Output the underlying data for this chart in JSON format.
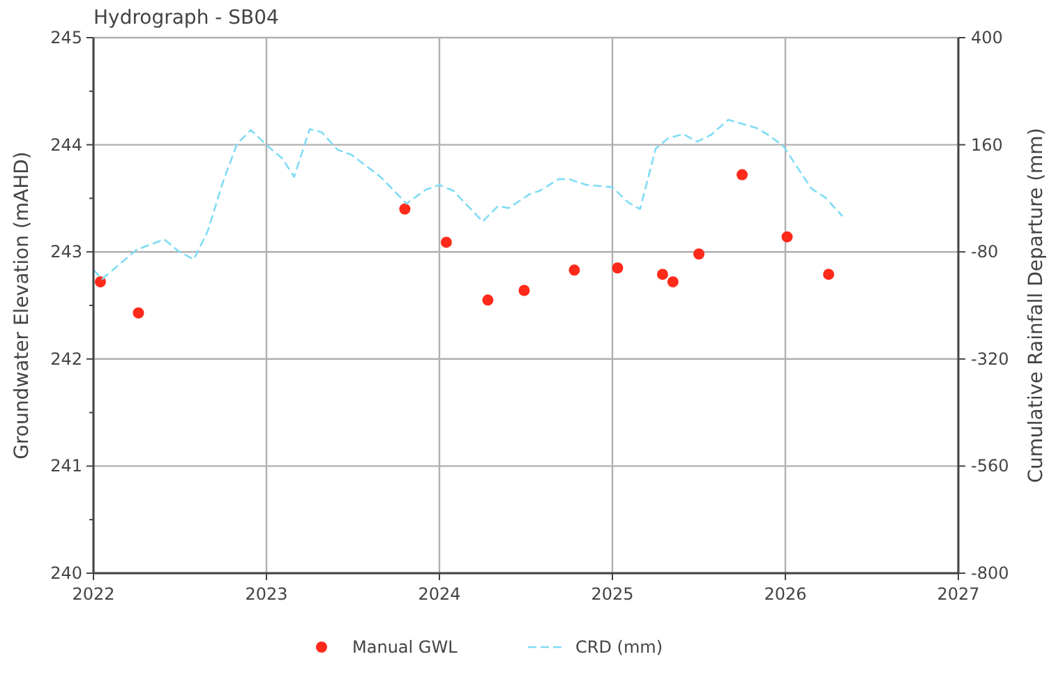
{
  "chart_data": {
    "type": "scatter",
    "title": "Hydrograph - SB04",
    "ylabel": "Groundwater Elevation (mAHD)",
    "y2label": "Cumulative Rainfall Departure (mm)",
    "xlim": [
      2022,
      2027
    ],
    "xticks": [
      2022,
      2023,
      2024,
      2025,
      2026,
      2027
    ],
    "ylim": [
      240,
      245
    ],
    "yticks": [
      240,
      {
        "value": 240.5,
        "label": null
      },
      241,
      {
        "value": 241.5,
        "label": null
      },
      242,
      {
        "value": 242.5,
        "label": null
      },
      243,
      {
        "value": 243.5,
        "label": null
      },
      244,
      {
        "value": 244.5,
        "label": null
      },
      245
    ],
    "y2lim": [
      -800,
      400
    ],
    "y2ticks": [
      -800,
      -560,
      -320,
      -80,
      160,
      400
    ],
    "grid": true,
    "legend": "bottom",
    "series": [
      {
        "name": "Manual GWL",
        "color": "#ff2a1a",
        "marker": "circle",
        "x": [
          2022.04,
          2022.26,
          2023.8,
          2024.04,
          2024.28,
          2024.49,
          2024.78,
          2025.03,
          2025.29,
          2025.35,
          2025.5,
          2025.75,
          2026.01,
          2026.25
        ],
        "values": [
          242.72,
          242.43,
          243.4,
          243.09,
          242.55,
          242.64,
          242.83,
          242.85,
          242.79,
          242.72,
          242.98,
          243.72,
          243.14,
          242.79
        ]
      },
      {
        "name": "CRD (mm)",
        "type": "line",
        "axis": "y2",
        "color": "#7fdcf5",
        "line_style": "dashed",
        "marker": "none",
        "x": [
          2022.0,
          2022.05,
          2022.25,
          2022.41,
          2022.49,
          2022.58,
          2022.66,
          2022.75,
          2022.83,
          2022.91,
          2023.01,
          2023.09,
          2023.16,
          2023.25,
          2023.32,
          2023.41,
          2023.49,
          2023.66,
          2023.81,
          2023.92,
          2024.0,
          2024.08,
          2024.25,
          2024.34,
          2024.4,
          2024.52,
          2024.58,
          2024.69,
          2024.75,
          2024.85,
          2025.0,
          2025.09,
          2025.16,
          2025.25,
          2025.32,
          2025.41,
          2025.49,
          2025.57,
          2025.67,
          2025.83,
          2025.91,
          2025.99,
          2026.15,
          2026.23,
          2026.33
        ],
        "values": [
          -120,
          -141,
          -75,
          -52,
          -78,
          -97,
          -34,
          78,
          162,
          193,
          156,
          130,
          88,
          195,
          188,
          149,
          138,
          88,
          28,
          59,
          70,
          57,
          -12,
          23,
          18,
          49,
          57,
          83,
          83,
          70,
          65,
          31,
          16,
          151,
          174,
          184,
          167,
          182,
          216,
          198,
          180,
          156,
          62,
          42,
          0
        ]
      }
    ]
  }
}
